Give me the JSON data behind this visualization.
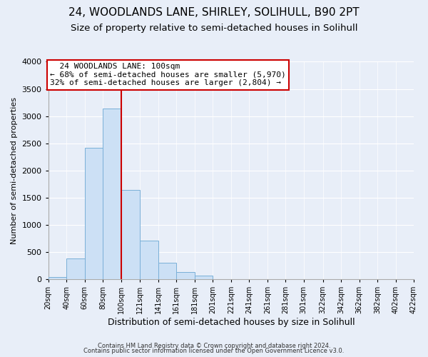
{
  "title": "24, WOODLANDS LANE, SHIRLEY, SOLIHULL, B90 2PT",
  "subtitle": "Size of property relative to semi-detached houses in Solihull",
  "xlabel": "Distribution of semi-detached houses by size in Solihull",
  "ylabel": "Number of semi-detached properties",
  "bin_labels": [
    "20sqm",
    "40sqm",
    "60sqm",
    "80sqm",
    "100sqm",
    "121sqm",
    "141sqm",
    "161sqm",
    "181sqm",
    "201sqm",
    "221sqm",
    "241sqm",
    "261sqm",
    "281sqm",
    "301sqm",
    "322sqm",
    "342sqm",
    "362sqm",
    "382sqm",
    "402sqm",
    "422sqm"
  ],
  "bin_edges": [
    20,
    40,
    60,
    80,
    100,
    121,
    141,
    161,
    181,
    201,
    221,
    241,
    261,
    281,
    301,
    322,
    342,
    362,
    382,
    402,
    422
  ],
  "bar_heights": [
    40,
    380,
    2420,
    3140,
    1640,
    700,
    290,
    130,
    55,
    0,
    0,
    0,
    0,
    0,
    0,
    0,
    0,
    0,
    0,
    0
  ],
  "bar_color": "#cce0f5",
  "bar_edgecolor": "#7ab0d8",
  "vline_x": 100,
  "vline_color": "#cc0000",
  "ylim": [
    0,
    4000
  ],
  "yticks": [
    0,
    500,
    1000,
    1500,
    2000,
    2500,
    3000,
    3500,
    4000
  ],
  "annotation_title": "24 WOODLANDS LANE: 100sqm",
  "annotation_line1": "← 68% of semi-detached houses are smaller (5,970)",
  "annotation_line2": "32% of semi-detached houses are larger (2,804) →",
  "annotation_box_color": "#ffffff",
  "annotation_box_edgecolor": "#cc0000",
  "footer1": "Contains HM Land Registry data © Crown copyright and database right 2024.",
  "footer2": "Contains public sector information licensed under the Open Government Licence v3.0.",
  "fig_background_color": "#e8eef8",
  "plot_background_color": "#e8eef8",
  "grid_color": "#ffffff",
  "title_fontsize": 11,
  "subtitle_fontsize": 9.5
}
